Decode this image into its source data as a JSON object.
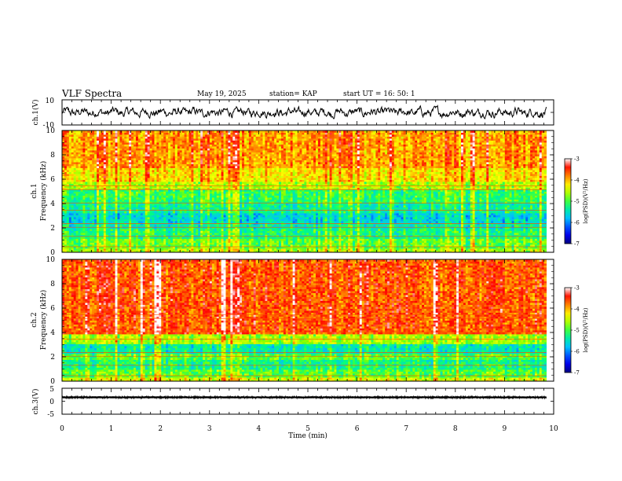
{
  "header": {
    "title": "VLF Spectra",
    "date": "May 19, 2025",
    "station": "station= KAP",
    "start_time": "start  UT =   16: 50: 1"
  },
  "chart_data": [
    {
      "type": "line",
      "panel": "ch1-waveform",
      "ylabel": "ch.1(V)",
      "ylim": [
        -10,
        10
      ],
      "yticks": [
        "10",
        "-10"
      ],
      "xlim": [
        0,
        10
      ],
      "approx_level": 0,
      "approx_amplitude": 4
    },
    {
      "type": "heatmap",
      "panel": "ch1-spectrogram",
      "ylabel": "ch.1\nFrequency  (kHz)",
      "ylabel_line1": "ch.1",
      "ylabel_line2": "Frequency  (kHz)",
      "ylim": [
        0,
        10
      ],
      "yticks": [
        "0",
        "2",
        "4",
        "6",
        "8",
        "10"
      ],
      "xlim": [
        0,
        9.85
      ],
      "log_psd_bands_khz": [
        {
          "from": 0,
          "to": 0.4,
          "value": -4.6
        },
        {
          "from": 0.4,
          "to": 1.2,
          "value": -4.9
        },
        {
          "from": 1.2,
          "to": 1.9,
          "value": -5.2
        },
        {
          "from": 1.9,
          "to": 2.4,
          "value": -5.4
        },
        {
          "from": 2.4,
          "to": 3.3,
          "value": -5.6
        },
        {
          "from": 3.3,
          "to": 4.0,
          "value": -5.3
        },
        {
          "from": 4.0,
          "to": 5.1,
          "value": -5.1
        },
        {
          "from": 5.1,
          "to": 5.8,
          "value": -4.6
        },
        {
          "from": 5.8,
          "to": 7.0,
          "value": -4.2
        },
        {
          "from": 7.0,
          "to": 10.0,
          "value": -3.9
        }
      ],
      "colorbar": {
        "label": "log(PSD)(V²/Hz)",
        "range": [
          -7,
          -3
        ],
        "ticks": [
          "-3",
          "-4",
          "-5",
          "-6",
          "-7"
        ]
      }
    },
    {
      "type": "heatmap",
      "panel": "ch2-spectrogram",
      "ylabel": "ch.2\nFrequency  (kHz)",
      "ylabel_line1": "ch.2",
      "ylabel_line2": "Frequency  (kHz)",
      "ylim": [
        0,
        10
      ],
      "yticks": [
        "0",
        "2",
        "4",
        "6",
        "8",
        "10"
      ],
      "xlim": [
        0,
        9.85
      ],
      "log_psd_bands_khz": [
        {
          "from": 0,
          "to": 0.4,
          "value": -4.5
        },
        {
          "from": 0.4,
          "to": 1.0,
          "value": -5.0
        },
        {
          "from": 1.0,
          "to": 1.8,
          "value": -5.3
        },
        {
          "from": 1.8,
          "to": 2.3,
          "value": -5.0
        },
        {
          "from": 2.3,
          "to": 3.1,
          "value": -5.5
        },
        {
          "from": 3.1,
          "to": 3.8,
          "value": -4.7
        },
        {
          "from": 3.8,
          "to": 10.0,
          "value": -3.7
        }
      ],
      "colorbar": {
        "label": "log(PSD)(V²/Hz)",
        "range": [
          -7,
          -3
        ],
        "ticks": [
          "-3",
          "-4",
          "-5",
          "-6",
          "-7"
        ]
      }
    },
    {
      "type": "line",
      "panel": "ch3-waveform",
      "ylabel": "ch.3(V)",
      "ylim": [
        -5,
        5
      ],
      "yticks": [
        "5",
        "0",
        "-5"
      ],
      "xlim": [
        0,
        9.85
      ],
      "approx_level": 1.5,
      "approx_amplitude": 0.4
    }
  ],
  "x_axis": {
    "label": "Time  (min)",
    "range": [
      0,
      10
    ],
    "ticks": [
      "0",
      "1",
      "2",
      "3",
      "4",
      "5",
      "6",
      "7",
      "8",
      "9",
      "10"
    ]
  }
}
